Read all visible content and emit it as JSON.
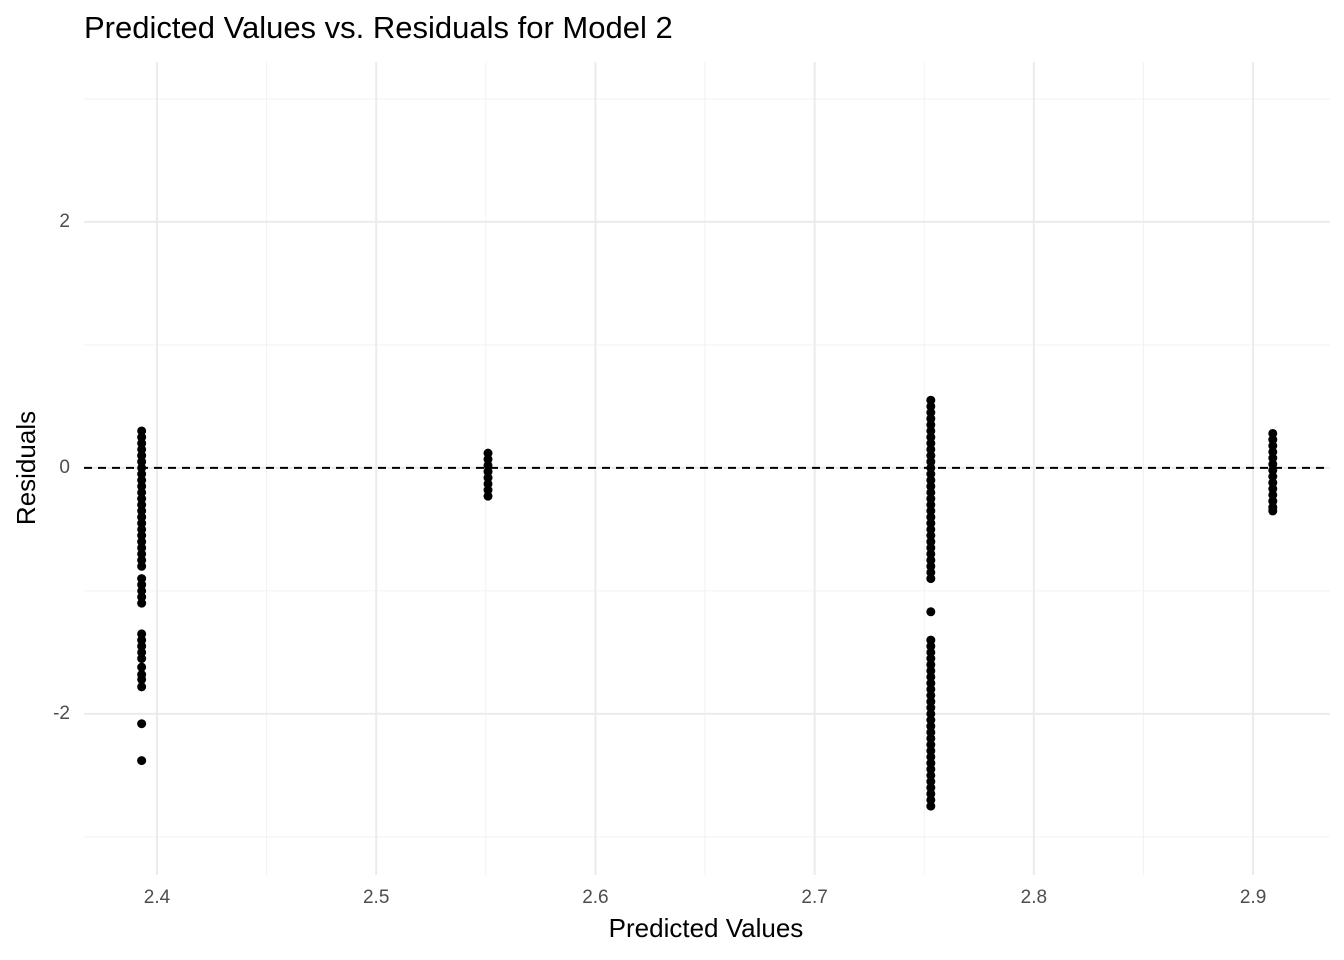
{
  "chart_data": {
    "type": "scatter",
    "title": "Predicted Values vs. Residuals for Model 2",
    "x_label": "Predicted Values",
    "y_label": "Residuals",
    "x": [
      2.393,
      2.393,
      2.393,
      2.393,
      2.393,
      2.393,
      2.393,
      2.393,
      2.393,
      2.393,
      2.393,
      2.393,
      2.393,
      2.393,
      2.393,
      2.393,
      2.393,
      2.393,
      2.393,
      2.393,
      2.393,
      2.393,
      2.393,
      2.393,
      2.393,
      2.393,
      2.393,
      2.393,
      2.393,
      2.393,
      2.393,
      2.393,
      2.393,
      2.393,
      2.393,
      2.393,
      2.393,
      2.393,
      2.393,
      2.551,
      2.551,
      2.551,
      2.551,
      2.551,
      2.551,
      2.551,
      2.551,
      2.753,
      2.753,
      2.753,
      2.753,
      2.753,
      2.753,
      2.753,
      2.753,
      2.753,
      2.753,
      2.753,
      2.753,
      2.753,
      2.753,
      2.753,
      2.753,
      2.753,
      2.753,
      2.753,
      2.753,
      2.753,
      2.753,
      2.753,
      2.753,
      2.753,
      2.753,
      2.753,
      2.753,
      2.753,
      2.753,
      2.753,
      2.753,
      2.753,
      2.753,
      2.753,
      2.753,
      2.753,
      2.753,
      2.753,
      2.753,
      2.753,
      2.753,
      2.753,
      2.753,
      2.753,
      2.753,
      2.753,
      2.753,
      2.753,
      2.753,
      2.753,
      2.753,
      2.753,
      2.753,
      2.753,
      2.753,
      2.753,
      2.753,
      2.753,
      2.909,
      2.909,
      2.909,
      2.909,
      2.909,
      2.909,
      2.909,
      2.909,
      2.909,
      2.909,
      2.909,
      2.909,
      2.909,
      2.909
    ],
    "values": [
      0.3,
      0.25,
      0.2,
      0.15,
      0.1,
      0.05,
      0,
      -0.05,
      -0.1,
      -0.15,
      -0.2,
      -0.25,
      -0.3,
      -0.35,
      -0.4,
      -0.45,
      -0.5,
      -0.55,
      -0.6,
      -0.65,
      -0.7,
      -0.75,
      -0.8,
      -0.9,
      -0.95,
      -1.0,
      -1.05,
      -1.1,
      -1.35,
      -1.4,
      -1.45,
      -1.5,
      -1.55,
      -1.62,
      -1.68,
      -1.72,
      -1.78,
      -2.08,
      -2.38,
      0.12,
      0.07,
      0.02,
      -0.03,
      -0.08,
      -0.13,
      -0.18,
      -0.23,
      0.55,
      0.5,
      0.45,
      0.4,
      0.35,
      0.3,
      0.25,
      0.2,
      0.15,
      0.1,
      0.05,
      0,
      -0.05,
      -0.1,
      -0.15,
      -0.2,
      -0.25,
      -0.3,
      -0.35,
      -0.4,
      -0.45,
      -0.5,
      -0.55,
      -0.6,
      -0.65,
      -0.7,
      -0.75,
      -0.8,
      -0.85,
      -0.9,
      -1.17,
      -1.4,
      -1.45,
      -1.5,
      -1.55,
      -1.6,
      -1.65,
      -1.7,
      -1.75,
      -1.8,
      -1.85,
      -1.9,
      -1.95,
      -2.0,
      -2.05,
      -2.1,
      -2.15,
      -2.2,
      -2.25,
      -2.3,
      -2.35,
      -2.4,
      -2.45,
      -2.5,
      -2.55,
      -2.6,
      -2.65,
      -2.7,
      -2.75,
      0.28,
      0.23,
      0.18,
      0.13,
      0.08,
      0.03,
      -0.02,
      -0.07,
      -0.12,
      -0.17,
      -0.22,
      -0.27,
      -0.32,
      -0.35
    ],
    "color": "#000000",
    "hline": 0,
    "xlim": [
      2.3667,
      2.9351
    ],
    "ylim": [
      -3.31,
      3.3
    ],
    "xticks": [
      2.4,
      2.5,
      2.6,
      2.7,
      2.8,
      2.9
    ],
    "yticks": [
      -2,
      0,
      2
    ],
    "x_minor_ticks": [
      2.45,
      2.55,
      2.65,
      2.75,
      2.85
    ],
    "y_minor_ticks": [
      -3,
      -1,
      1,
      3
    ],
    "grid": true
  }
}
